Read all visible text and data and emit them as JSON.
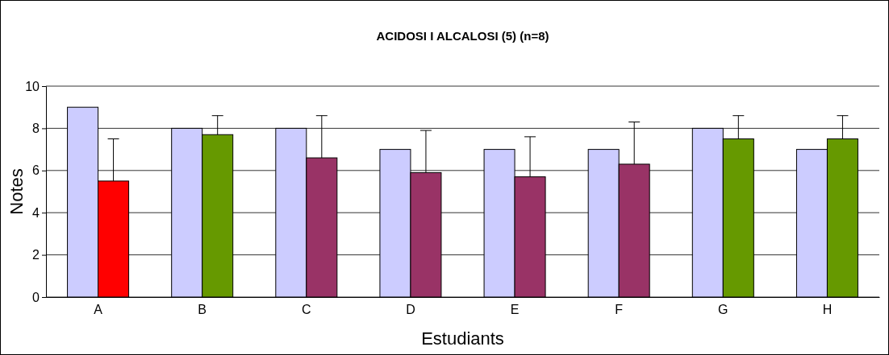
{
  "chart_data": {
    "type": "bar",
    "title": "ACIDOSI I ALCALOSI (5) (n=8)",
    "xlabel": "Estudiants",
    "ylabel": "Notes",
    "categories": [
      "A",
      "B",
      "C",
      "D",
      "E",
      "F",
      "G",
      "H"
    ],
    "series": [
      {
        "color": "#ccccff",
        "values": [
          9,
          8,
          8,
          7,
          7,
          7,
          8,
          7
        ]
      },
      {
        "colors": [
          "#ff0000",
          "#669900",
          "#993366",
          "#993366",
          "#993366",
          "#993366",
          "#669900",
          "#669900"
        ],
        "values": [
          5.5,
          7.7,
          6.6,
          5.9,
          5.7,
          6.3,
          7.5,
          7.5
        ],
        "errors": [
          [
            5.5,
            7.5
          ],
          [
            7.7,
            8.6
          ],
          [
            6.6,
            8.6
          ],
          [
            5.9,
            7.9
          ],
          [
            5.7,
            7.6
          ],
          [
            6.3,
            8.3
          ],
          [
            7.5,
            8.6
          ],
          [
            7.5,
            8.6
          ]
        ]
      }
    ],
    "ylim": [
      0,
      10
    ],
    "yticks": [
      0,
      2,
      4,
      6,
      8,
      10
    ],
    "grid": "y"
  }
}
